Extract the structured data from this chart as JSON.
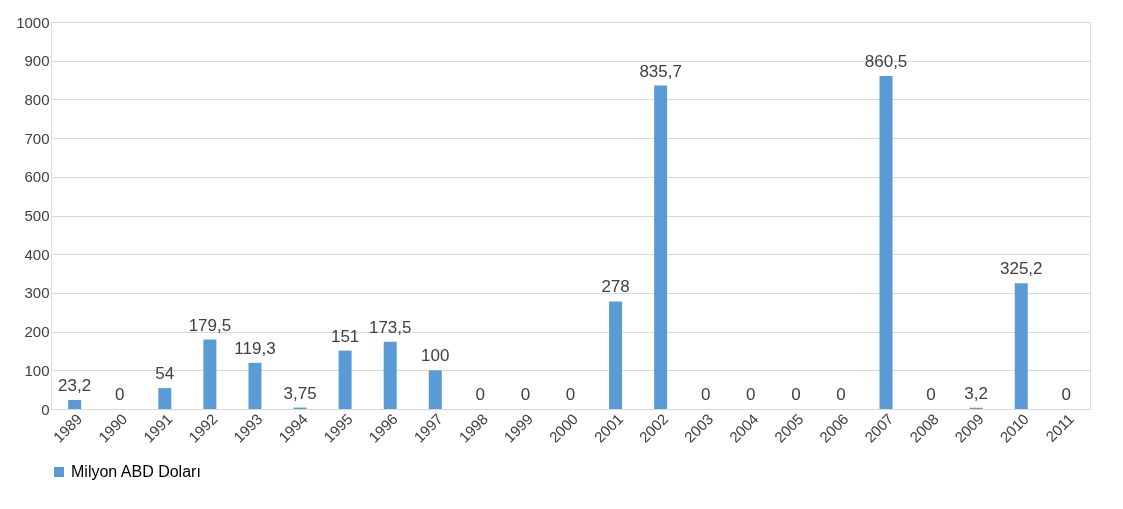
{
  "chart_data": {
    "type": "bar",
    "categories": [
      "1989",
      "1990",
      "1991",
      "1992",
      "1993",
      "1994",
      "1995",
      "1996",
      "1997",
      "1998",
      "1999",
      "2000",
      "2001",
      "2002",
      "2003",
      "2004",
      "2005",
      "2006",
      "2007",
      "2008",
      "2009",
      "2010",
      "2011"
    ],
    "series": [
      {
        "name": "Milyon ABD Doları",
        "color": "#5b9bd5",
        "values": [
          23.2,
          0,
          54,
          179.5,
          119.3,
          3.75,
          151,
          173.5,
          100,
          0,
          0,
          0,
          278,
          835.7,
          0,
          0,
          0,
          0,
          860.5,
          0,
          3.2,
          325.2,
          0
        ],
        "value_labels": [
          "23,2",
          "0",
          "54",
          "179,5",
          "119,3",
          "3,75",
          "151",
          "173,5",
          "100",
          "0",
          "0",
          "0",
          "278",
          "835,7",
          "0",
          "0",
          "0",
          "0",
          "860,5",
          "0",
          "3,2",
          "325,2",
          "0"
        ]
      }
    ],
    "ylim": [
      0,
      1000
    ],
    "yticks": [
      0,
      100,
      200,
      300,
      400,
      500,
      600,
      700,
      800,
      900,
      1000
    ],
    "grid": "y",
    "legend": "bottom"
  }
}
